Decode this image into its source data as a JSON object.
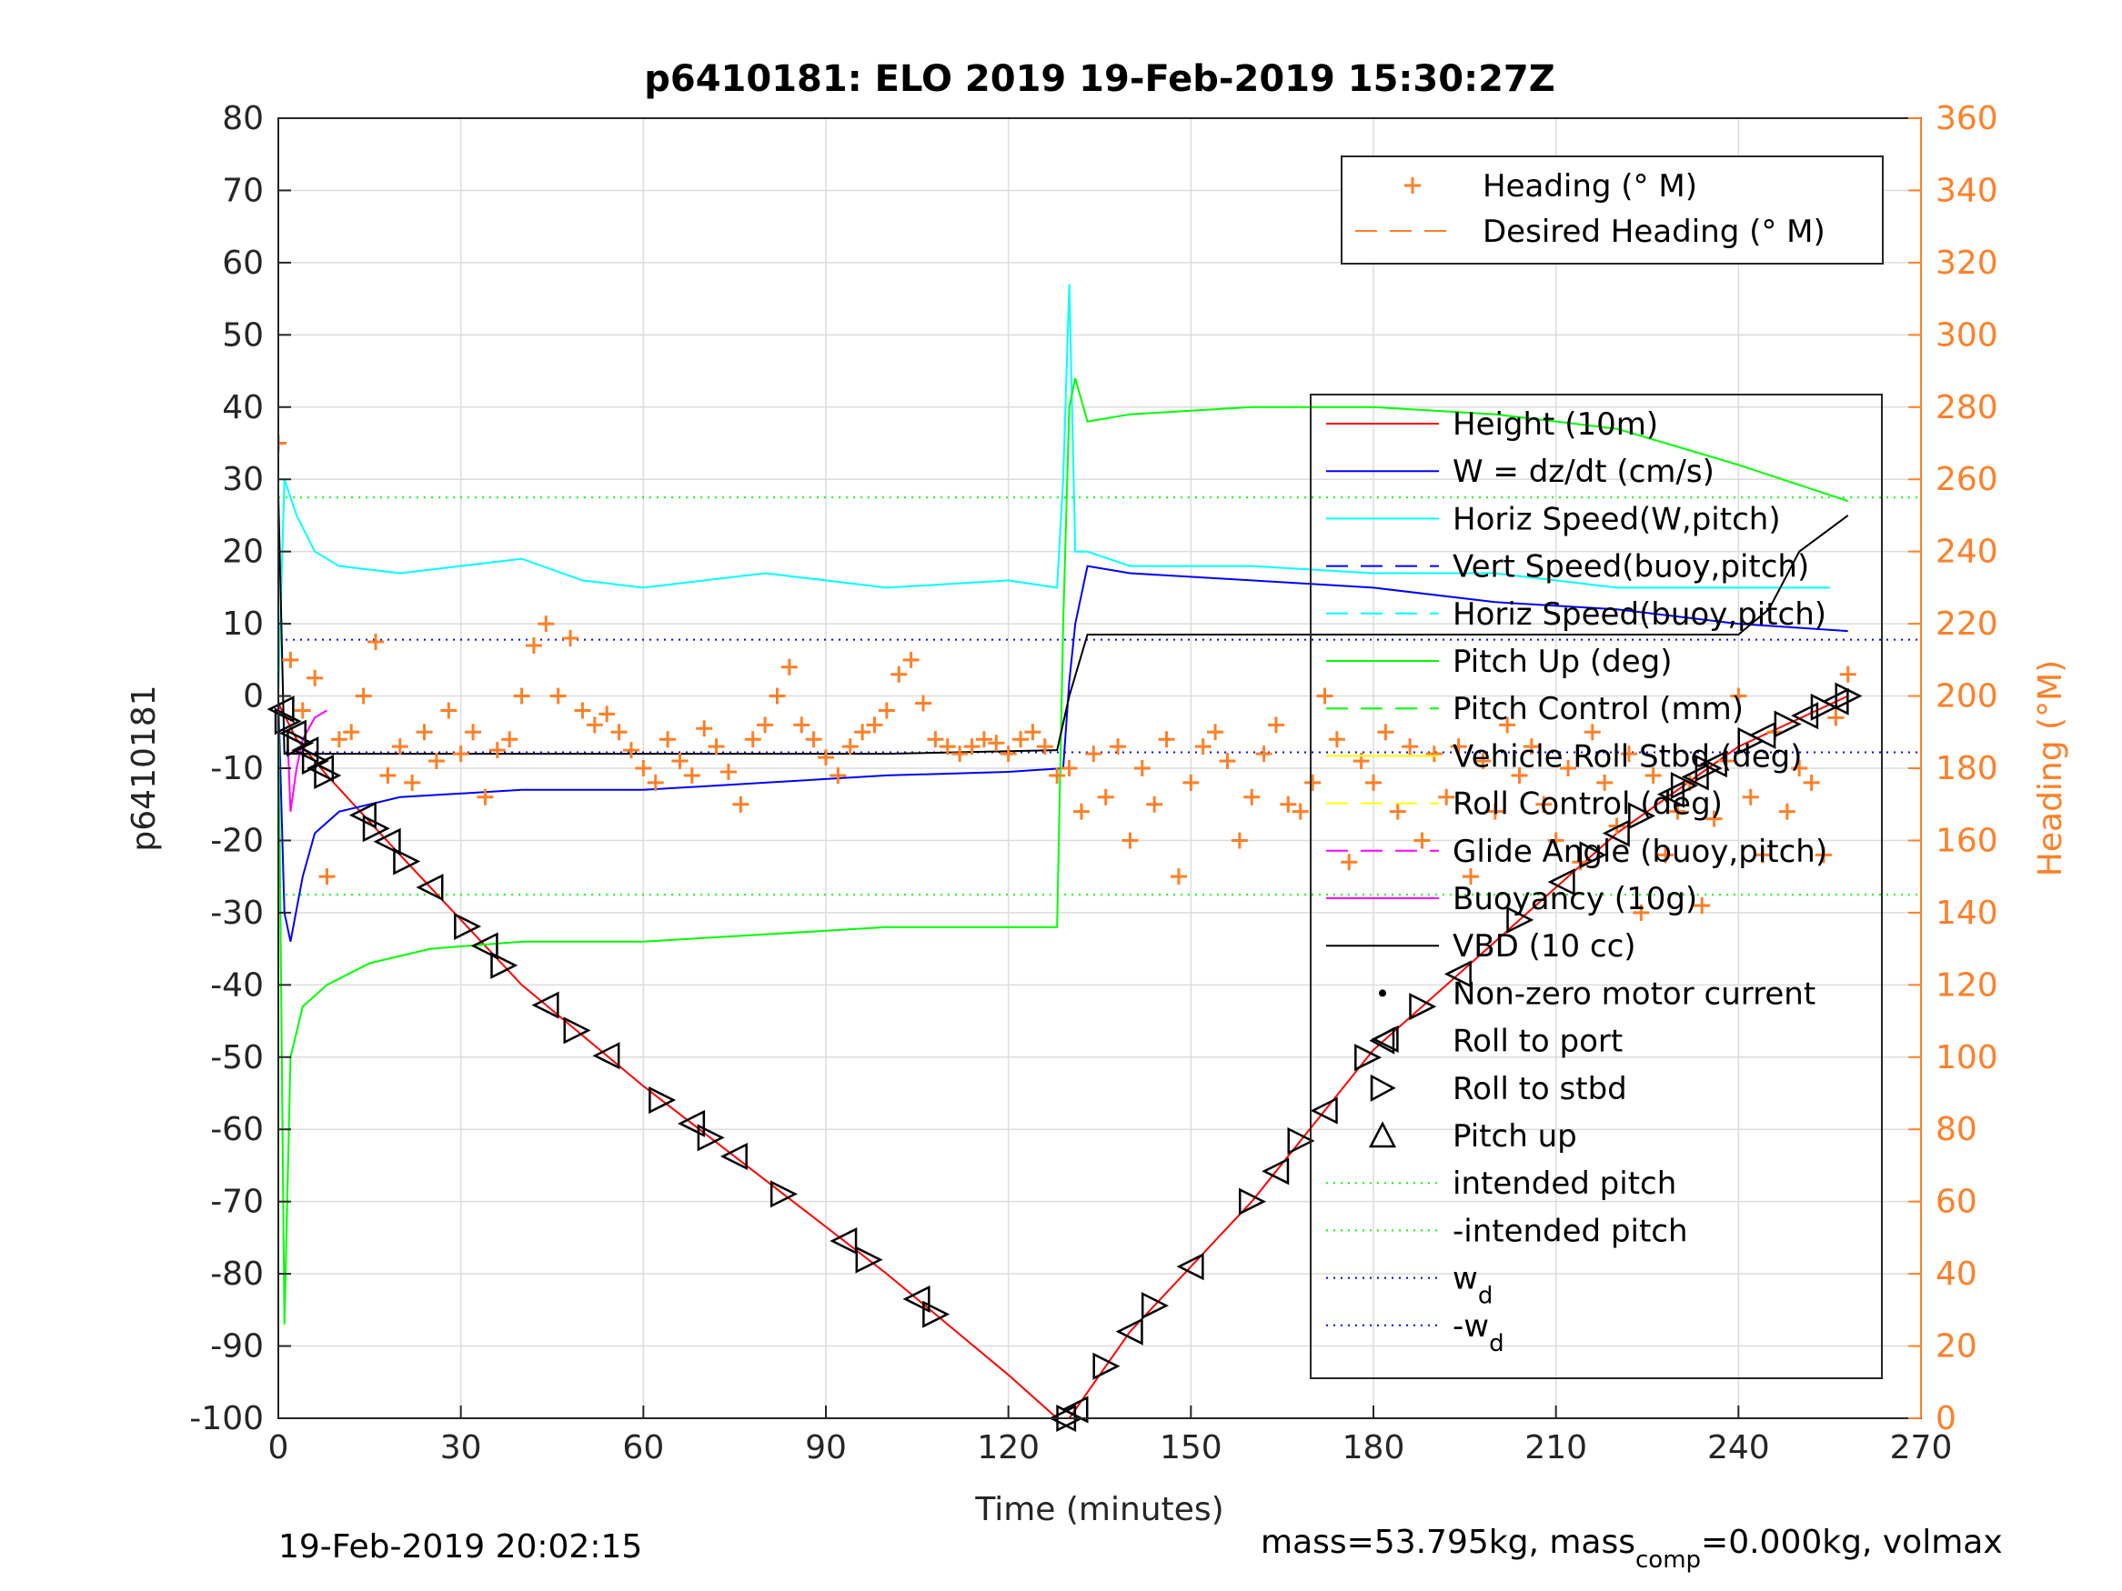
{
  "chart_data": {
    "type": "line",
    "title": "p6410181: ELO 2019 19-Feb-2019 15:30:27Z",
    "xlabel": "Time (minutes)",
    "ylabel_left": "p6410181",
    "ylabel_right": "Heading (°M)",
    "xlim": [
      0,
      270
    ],
    "ylim_left": [
      -100,
      80
    ],
    "ylim_right": [
      0,
      360
    ],
    "xticks": [
      "0",
      "30",
      "60",
      "90",
      "120",
      "150",
      "180",
      "210",
      "240",
      "270"
    ],
    "yticks_left": [
      "80",
      "70",
      "60",
      "50",
      "40",
      "30",
      "20",
      "10",
      "0",
      "-10",
      "-20",
      "-30",
      "-40",
      "-50",
      "-60",
      "-70",
      "-80",
      "-90",
      "-100"
    ],
    "yticks_right": [
      "360",
      "340",
      "320",
      "300",
      "280",
      "260",
      "240",
      "220",
      "200",
      "180",
      "160",
      "140",
      "120",
      "100",
      "80",
      "60",
      "40",
      "20",
      "0"
    ],
    "grid": true,
    "legend_heading": {
      "placement": "top-right",
      "entries": [
        {
          "label": "Heading (° M)",
          "marker": "+",
          "color": "#ff7f27"
        },
        {
          "label": "Desired Heading (° M)",
          "line": "dashed",
          "color": "#ff7f27"
        }
      ]
    },
    "legend_main": {
      "placement": "right",
      "entries": [
        {
          "label": "Height (10m)",
          "color": "#ff0000",
          "line": "solid"
        },
        {
          "label": "W = dz/dt (cm/s)",
          "color": "#0000ff",
          "line": "solid"
        },
        {
          "label": "Horiz Speed(W,pitch)",
          "color": "#00ffff",
          "line": "solid"
        },
        {
          "label": "Vert Speed(buoy,pitch)",
          "color": "#0000ff",
          "line": "dashed"
        },
        {
          "label": "Horiz Speed(buoy,pitch)",
          "color": "#00ffff",
          "line": "dashed"
        },
        {
          "label": "Pitch Up (deg)",
          "color": "#00ff00",
          "line": "solid"
        },
        {
          "label": "Pitch Control (mm)",
          "color": "#00ff00",
          "line": "dashed"
        },
        {
          "label": "Vehicle Roll Stbd (deg)",
          "color": "#ffff00",
          "line": "solid"
        },
        {
          "label": "Roll Control (deg)",
          "color": "#ffff00",
          "line": "dashed"
        },
        {
          "label": "Glide Angle (buoy,pitch)",
          "color": "#ff00ff",
          "line": "dashed"
        },
        {
          "label": "Buoyancy (10g)",
          "color": "#ff00ff",
          "line": "solid"
        },
        {
          "label": "VBD (10 cc)",
          "color": "#000000",
          "line": "solid"
        },
        {
          "label": "Non-zero motor current",
          "color": "#000000",
          "marker": "dot"
        },
        {
          "label": "Roll to port",
          "color": "#000000",
          "marker": "triangle-left"
        },
        {
          "label": "Roll to stbd",
          "color": "#000000",
          "marker": "triangle-right"
        },
        {
          "label": "Pitch up",
          "color": "#000000",
          "marker": "triangle-up"
        },
        {
          "label": "intended pitch",
          "color": "#00ff00",
          "line": "dotted"
        },
        {
          "label": "-intended pitch",
          "color": "#00ff00",
          "line": "dotted"
        },
        {
          "label": "w",
          "sub": "d",
          "color": "#0000ff",
          "line": "dotted"
        },
        {
          "label": "-w",
          "sub": "d",
          "color": "#0000ff",
          "line": "dotted"
        }
      ]
    },
    "reference_lines": {
      "intended_pitch": 27.5,
      "wd": 7.8
    },
    "series": [
      {
        "name": "Height (10m)",
        "color": "#ff0000",
        "x": [
          0,
          3,
          8,
          20,
          40,
          60,
          80,
          100,
          120,
          128,
          130,
          140,
          160,
          180,
          200,
          220,
          240,
          258
        ],
        "y": [
          -1,
          -6,
          -11,
          -22,
          -40,
          -54,
          -67,
          -80,
          -94,
          -100,
          -100,
          -88,
          -70,
          -49,
          -34,
          -19,
          -7,
          0
        ]
      },
      {
        "name": "W = dz/dt (cm/s)",
        "color": "#0000ff",
        "x": [
          0,
          1,
          2,
          4,
          6,
          10,
          20,
          40,
          60,
          80,
          100,
          120,
          129,
          130,
          131,
          133,
          140,
          160,
          180,
          200,
          220,
          240,
          258
        ],
        "y": [
          0,
          -30,
          -34,
          -25,
          -19,
          -16,
          -14,
          -13,
          -13,
          -12,
          -11,
          -10.5,
          -10,
          2,
          10,
          18,
          17,
          16,
          15,
          13,
          12,
          10,
          9
        ]
      },
      {
        "name": "Horiz Speed(W,pitch)",
        "color": "#00ffff",
        "x": [
          0,
          1,
          3,
          6,
          10,
          20,
          30,
          40,
          50,
          60,
          80,
          100,
          120,
          128,
          129,
          130,
          131,
          133,
          140,
          160,
          180,
          200,
          220,
          240,
          255
        ],
        "y": [
          0,
          30,
          25,
          20,
          18,
          17,
          18,
          19,
          16,
          15,
          17,
          15,
          16,
          15,
          30,
          57,
          20,
          20,
          18,
          18,
          17,
          17,
          15,
          15,
          15
        ]
      },
      {
        "name": "Pitch Up (deg)",
        "color": "#00ff00",
        "x": [
          0,
          1,
          2,
          4,
          8,
          15,
          25,
          40,
          60,
          80,
          100,
          128,
          129,
          130,
          131,
          133,
          140,
          160,
          180,
          200,
          220,
          240,
          258
        ],
        "y": [
          0,
          -87,
          -50,
          -43,
          -40,
          -37,
          -35,
          -34,
          -34,
          -33,
          -32,
          -32,
          10,
          40,
          44,
          38,
          39,
          40,
          40,
          39,
          37,
          32,
          27
        ]
      },
      {
        "name": "VBD (10 cc)",
        "color": "#000000",
        "x": [
          0,
          1,
          3,
          60,
          100,
          128,
          130,
          133,
          200,
          240,
          245,
          250,
          258
        ],
        "y": [
          28,
          -8,
          -8,
          -8,
          -8,
          -7.5,
          0,
          8.5,
          8.5,
          8.5,
          12,
          20,
          25
        ]
      },
      {
        "name": "Buoyancy (10g)",
        "color": "#ff00ff",
        "x": [
          1.5,
          2,
          3,
          4,
          6,
          8
        ],
        "y": [
          -5,
          -16,
          -10,
          -6,
          -3,
          -2
        ]
      }
    ],
    "heading_series": {
      "name": "Heading (° M)",
      "color": "#ff7f27",
      "x": [
        0,
        2,
        4,
        6,
        8,
        10,
        12,
        14,
        16,
        18,
        20,
        22,
        24,
        26,
        28,
        30,
        32,
        34,
        36,
        38,
        40,
        42,
        44,
        46,
        48,
        50,
        52,
        54,
        56,
        58,
        60,
        62,
        64,
        66,
        68,
        70,
        72,
        74,
        76,
        78,
        80,
        82,
        84,
        86,
        88,
        90,
        92,
        94,
        96,
        98,
        100,
        102,
        104,
        106,
        108,
        110,
        112,
        114,
        116,
        118,
        120,
        122,
        124,
        126,
        128,
        130,
        132,
        134,
        136,
        138,
        140,
        142,
        144,
        146,
        148,
        150,
        152,
        154,
        156,
        158,
        160,
        162,
        164,
        166,
        168,
        170,
        172,
        174,
        176,
        178,
        180,
        182,
        184,
        186,
        188,
        190,
        192,
        194,
        196,
        198,
        200,
        202,
        204,
        206,
        208,
        210,
        212,
        214,
        216,
        218,
        220,
        222,
        224,
        226,
        228,
        230,
        232,
        234,
        236,
        238,
        240,
        242,
        244,
        246,
        248,
        250,
        252,
        254,
        256,
        258
      ],
      "y": [
        270,
        210,
        196,
        205,
        150,
        188,
        190,
        200,
        215,
        178,
        186,
        176,
        190,
        182,
        196,
        184,
        190,
        172,
        185,
        188,
        200,
        214,
        220,
        200,
        216,
        196,
        192,
        195,
        190,
        185,
        180,
        176,
        188,
        182,
        178,
        191,
        186,
        179,
        170,
        188,
        192,
        200,
        208,
        192,
        188,
        183,
        178,
        186,
        190,
        192,
        196,
        206,
        210,
        198,
        188,
        186,
        184,
        186,
        188,
        187,
        184,
        188,
        190,
        186,
        178,
        180,
        168,
        184,
        172,
        186,
        160,
        180,
        170,
        188,
        150,
        176,
        186,
        190,
        182,
        160,
        172,
        184,
        192,
        170,
        168,
        176,
        200,
        188,
        154,
        182,
        176,
        190,
        168,
        186,
        160,
        184,
        172,
        186,
        150,
        182,
        168,
        192,
        178,
        186,
        170,
        160,
        180,
        154,
        190,
        176,
        164,
        184,
        140,
        178,
        156,
        168,
        176,
        142,
        166,
        182,
        200,
        172,
        156,
        190,
        168,
        180,
        176,
        156,
        194,
        206
      ]
    },
    "marker_points": {
      "roll_left_right": [
        0.5,
        1.5,
        2.5,
        3.5,
        4.5,
        6,
        7,
        8,
        14,
        16,
        18,
        21,
        25,
        31,
        34,
        37,
        44,
        49,
        54,
        63,
        68,
        71,
        75,
        83,
        93,
        97,
        105,
        108,
        129,
        130,
        131,
        136,
        140,
        144,
        150,
        160,
        164,
        168,
        172,
        179,
        182,
        188,
        194,
        204,
        211,
        216,
        220,
        224,
        229,
        231,
        233,
        235,
        236,
        242,
        244,
        248,
        251,
        254,
        256,
        258
      ]
    }
  },
  "footer": {
    "timestamp": "19-Feb-2019 20:02:15",
    "mass_prefix": "mass=53.795kg, mass",
    "mass_sub": "comp",
    "mass_suffix": "=0.000kg, volmax"
  }
}
